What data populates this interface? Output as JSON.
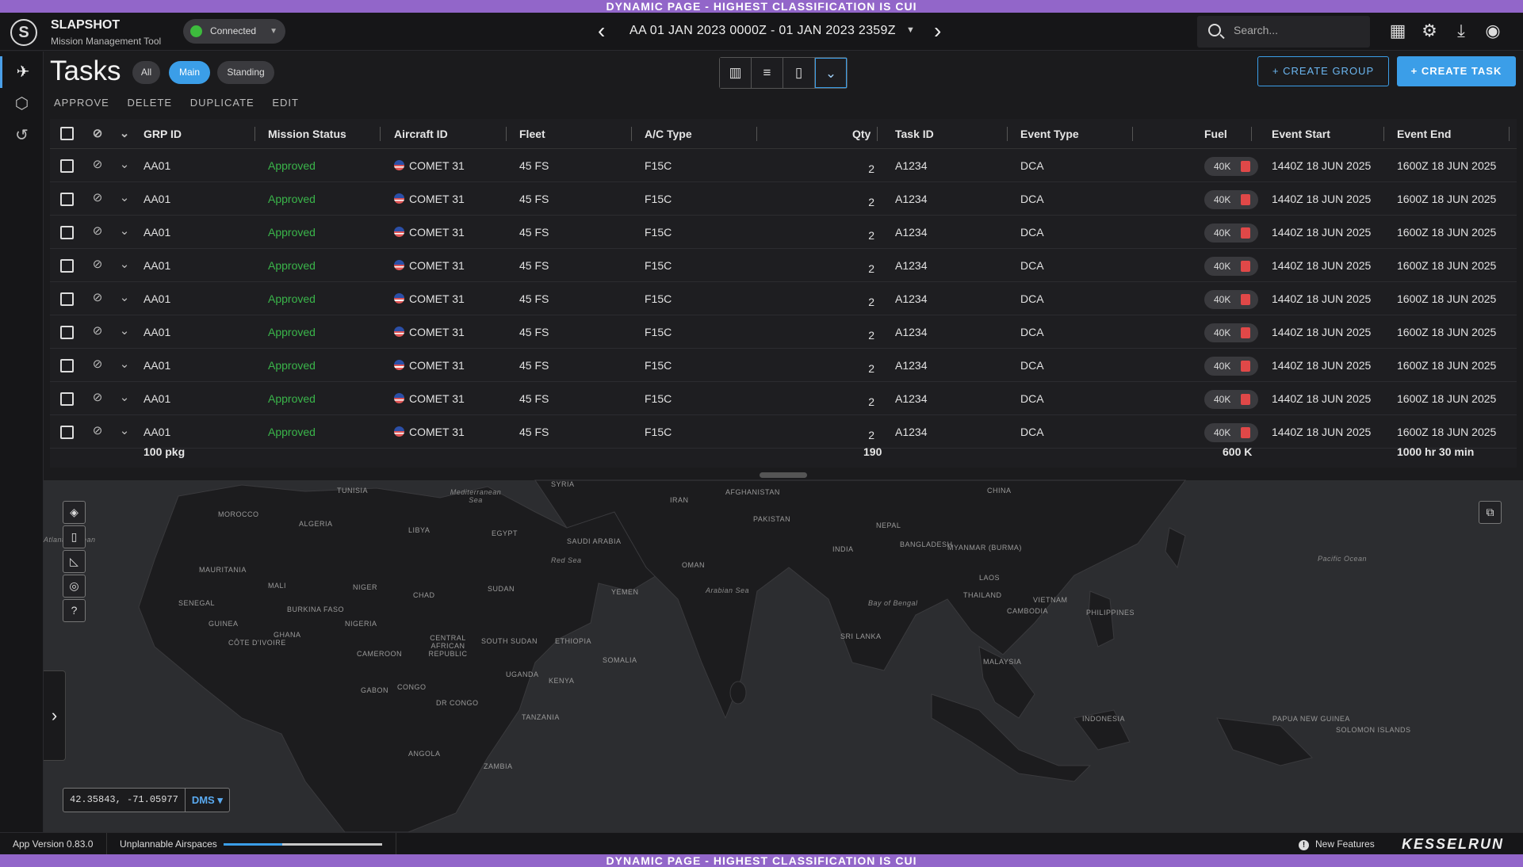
{
  "banner": {
    "top": "DYNAMIC PAGE - HIGHEST CLASSIFICATION IS CUI",
    "bottom": "DYNAMIC PAGE - HIGHEST CLASSIFICATION IS CUI"
  },
  "header": {
    "logo": "S",
    "app_name": "SLAPSHOT",
    "app_subtitle": "Mission Management Tool",
    "connection": "Connected",
    "date_range": "AA  01 JAN 2023 0000Z - 01 JAN 2023 2359Z",
    "search_placeholder": "Search...",
    "icons": [
      "apps-grid-icon",
      "gear-icon",
      "download-icon",
      "account-icon"
    ]
  },
  "rail": {
    "icons": [
      "aircraft-icon",
      "network-icon",
      "history-icon"
    ]
  },
  "tasks": {
    "title": "Tasks",
    "filters": [
      "All",
      "Main",
      "Standing"
    ],
    "active_filter": "Main",
    "actions": [
      "APPROVE",
      "DELETE",
      "DUPLICATE",
      "EDIT"
    ],
    "create_group": "+  CREATE GROUP",
    "create_task": "+  CREATE TASK",
    "columns": [
      "GRP ID",
      "Mission Status",
      "Aircraft ID",
      "Fleet",
      "A/C Type",
      "Qty",
      "Task ID",
      "Event Type",
      "Fuel",
      "Event Start",
      "Event End"
    ],
    "rows": [
      {
        "grp": "AA01",
        "status": "Approved",
        "aircraft": "COMET 31",
        "fleet": "45 FS",
        "actype": "F15C",
        "qty": "2",
        "task": "A1234",
        "event": "DCA",
        "fuel": "40K",
        "start": "1440Z 18 JUN 2025",
        "end": "1600Z 18 JUN 2025"
      },
      {
        "grp": "AA01",
        "status": "Approved",
        "aircraft": "COMET 31",
        "fleet": "45 FS",
        "actype": "F15C",
        "qty": "2",
        "task": "A1234",
        "event": "DCA",
        "fuel": "40K",
        "start": "1440Z 18 JUN 2025",
        "end": "1600Z 18 JUN 2025"
      },
      {
        "grp": "AA01",
        "status": "Approved",
        "aircraft": "COMET 31",
        "fleet": "45 FS",
        "actype": "F15C",
        "qty": "2",
        "task": "A1234",
        "event": "DCA",
        "fuel": "40K",
        "start": "1440Z 18 JUN 2025",
        "end": "1600Z 18 JUN 2025"
      },
      {
        "grp": "AA01",
        "status": "Approved",
        "aircraft": "COMET 31",
        "fleet": "45 FS",
        "actype": "F15C",
        "qty": "2",
        "task": "A1234",
        "event": "DCA",
        "fuel": "40K",
        "start": "1440Z 18 JUN 2025",
        "end": "1600Z 18 JUN 2025"
      },
      {
        "grp": "AA01",
        "status": "Approved",
        "aircraft": "COMET 31",
        "fleet": "45 FS",
        "actype": "F15C",
        "qty": "2",
        "task": "A1234",
        "event": "DCA",
        "fuel": "40K",
        "start": "1440Z 18 JUN 2025",
        "end": "1600Z 18 JUN 2025"
      },
      {
        "grp": "AA01",
        "status": "Approved",
        "aircraft": "COMET 31",
        "fleet": "45 FS",
        "actype": "F15C",
        "qty": "2",
        "task": "A1234",
        "event": "DCA",
        "fuel": "40K",
        "start": "1440Z 18 JUN 2025",
        "end": "1600Z 18 JUN 2025"
      },
      {
        "grp": "AA01",
        "status": "Approved",
        "aircraft": "COMET 31",
        "fleet": "45 FS",
        "actype": "F15C",
        "qty": "2",
        "task": "A1234",
        "event": "DCA",
        "fuel": "40K",
        "start": "1440Z 18 JUN 2025",
        "end": "1600Z 18 JUN 2025"
      },
      {
        "grp": "AA01",
        "status": "Approved",
        "aircraft": "COMET 31",
        "fleet": "45 FS",
        "actype": "F15C",
        "qty": "2",
        "task": "A1234",
        "event": "DCA",
        "fuel": "40K",
        "start": "1440Z 18 JUN 2025",
        "end": "1600Z 18 JUN 2025"
      },
      {
        "grp": "AA01",
        "status": "Approved",
        "aircraft": "COMET 31",
        "fleet": "45 FS",
        "actype": "F15C",
        "qty": "2",
        "task": "A1234",
        "event": "DCA",
        "fuel": "40K",
        "start": "1440Z 18 JUN 2025",
        "end": "1600Z 18 JUN 2025"
      }
    ],
    "totals": {
      "grp": "100 pkg",
      "qty": "190",
      "fuel": "600 K",
      "duration": "1000 hr 30 min"
    }
  },
  "map": {
    "labels": [
      {
        "text": "TUNISIA",
        "cls": ""
      },
      {
        "text": "Mediterranean Sea",
        "cls": "water"
      },
      {
        "text": "SYRIA",
        "cls": ""
      },
      {
        "text": "IRAN",
        "cls": ""
      },
      {
        "text": "AFGHANISTAN",
        "cls": ""
      },
      {
        "text": "CHINA",
        "cls": ""
      },
      {
        "text": "MOROCCO",
        "cls": ""
      },
      {
        "text": "ALGERIA",
        "cls": ""
      },
      {
        "text": "LIBYA",
        "cls": ""
      },
      {
        "text": "EGYPT",
        "cls": ""
      },
      {
        "text": "PAKISTAN",
        "cls": ""
      },
      {
        "text": "NEPAL",
        "cls": ""
      },
      {
        "text": "SAUDI ARABIA",
        "cls": ""
      },
      {
        "text": "INDIA",
        "cls": ""
      },
      {
        "text": "BANGLADESH",
        "cls": ""
      },
      {
        "text": "MYANMAR (BURMA)",
        "cls": ""
      },
      {
        "text": "Red Sea",
        "cls": "water"
      },
      {
        "text": "OMAN",
        "cls": ""
      },
      {
        "text": "MAURITANIA",
        "cls": ""
      },
      {
        "text": "MALI",
        "cls": ""
      },
      {
        "text": "NIGER",
        "cls": ""
      },
      {
        "text": "SUDAN",
        "cls": ""
      },
      {
        "text": "CHAD",
        "cls": ""
      },
      {
        "text": "YEMEN",
        "cls": ""
      },
      {
        "text": "Arabian Sea",
        "cls": "water"
      },
      {
        "text": "LAOS",
        "cls": ""
      },
      {
        "text": "THAILAND",
        "cls": ""
      },
      {
        "text": "VIETNAM",
        "cls": ""
      },
      {
        "text": "CAMBODIA",
        "cls": ""
      },
      {
        "text": "Bay of Bengal",
        "cls": "water"
      },
      {
        "text": "PHILIPPINES",
        "cls": ""
      },
      {
        "text": "Pacific Ocean",
        "cls": "water"
      },
      {
        "text": "SENEGAL",
        "cls": ""
      },
      {
        "text": "BURKINA FASO",
        "cls": ""
      },
      {
        "text": "GUINEA",
        "cls": ""
      },
      {
        "text": "NIGERIA",
        "cls": ""
      },
      {
        "text": "GHANA",
        "cls": ""
      },
      {
        "text": "CÔTE D'IVOIRE",
        "cls": ""
      },
      {
        "text": "CENTRAL AFRICAN REPUBLIC",
        "cls": ""
      },
      {
        "text": "SOUTH SUDAN",
        "cls": ""
      },
      {
        "text": "ETHIOPIA",
        "cls": ""
      },
      {
        "text": "SRI LANKA",
        "cls": ""
      },
      {
        "text": "CAMEROON",
        "cls": ""
      },
      {
        "text": "SOMALIA",
        "cls": ""
      },
      {
        "text": "MALAYSIA",
        "cls": ""
      },
      {
        "text": "UGANDA",
        "cls": ""
      },
      {
        "text": "KENYA",
        "cls": ""
      },
      {
        "text": "GABON",
        "cls": ""
      },
      {
        "text": "CONGO",
        "cls": ""
      },
      {
        "text": "DR CONGO",
        "cls": ""
      },
      {
        "text": "TANZANIA",
        "cls": ""
      },
      {
        "text": "INDONESIA",
        "cls": ""
      },
      {
        "text": "PAPUA NEW GUINEA",
        "cls": ""
      },
      {
        "text": "SOLOMON ISLANDS",
        "cls": ""
      },
      {
        "text": "ANGOLA",
        "cls": ""
      },
      {
        "text": "ZAMBIA",
        "cls": ""
      },
      {
        "text": "Atlantic Ocean",
        "cls": "water"
      }
    ],
    "tools": [
      "layers-icon",
      "map-icon",
      "measure-icon",
      "radar-icon",
      "help-icon"
    ],
    "coordinates": "42.35843, -71.05977",
    "coord_format": "DMS"
  },
  "footer": {
    "version": "App Version 0.83.0",
    "unplannable": "Unplannable Airspaces",
    "unplannable_progress": 0.37,
    "new_features": "New Features",
    "brand": "KESSELRUN"
  }
}
